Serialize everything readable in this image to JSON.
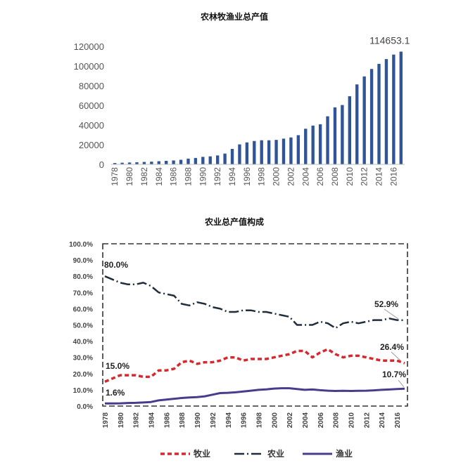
{
  "chart_data": [
    {
      "type": "bar",
      "title": "农林牧渔业总产值",
      "color": "#2f5597",
      "ylim": [
        0,
        120000
      ],
      "yticks": [
        0,
        20000,
        40000,
        60000,
        80000,
        100000,
        120000
      ],
      "xtick_labels": [
        "1978",
        "1980",
        "1982",
        "1984",
        "1986",
        "1988",
        "1990",
        "1992",
        "1994",
        "1996",
        "1998",
        "2000",
        "2002",
        "2004",
        "2006",
        "2008",
        "2010",
        "2012",
        "2014",
        "2016"
      ],
      "x": [
        1978,
        1979,
        1980,
        1981,
        1982,
        1983,
        1984,
        1985,
        1986,
        1987,
        1988,
        1989,
        1990,
        1991,
        1992,
        1993,
        1994,
        1995,
        1996,
        1997,
        1998,
        1999,
        2000,
        2001,
        2002,
        2003,
        2004,
        2005,
        2006,
        2007,
        2008,
        2009,
        2010,
        2011,
        2012,
        2013,
        2014,
        2015,
        2016,
        2017
      ],
      "values": [
        1397,
        1698,
        1923,
        2181,
        2483,
        2750,
        3214,
        3619,
        4013,
        4676,
        5865,
        6535,
        7662,
        8157,
        9085,
        10996,
        15750,
        20341,
        22354,
        23788,
        24542,
        24519,
        24916,
        26180,
        27391,
        29692,
        36239,
        39451,
        40811,
        48893,
        58002,
        60361,
        69320,
        81304,
        89453,
        96995,
        102226,
        107056,
        111640,
        114653.1
      ],
      "annotation": "114653.1",
      "grid": false
    },
    {
      "type": "line",
      "title": "农业总产值构成",
      "ylim": [
        0,
        100
      ],
      "yticks": [
        "0.0%",
        "10.0%",
        "20.0%",
        "30.0%",
        "40.0%",
        "50.0%",
        "60.0%",
        "70.0%",
        "80.0%",
        "90.0%",
        "100.0%"
      ],
      "xtick_labels": [
        "1978",
        "1980",
        "1982",
        "1984",
        "1986",
        "1988",
        "1990",
        "1992",
        "1994",
        "1996",
        "1998",
        "2000",
        "2002",
        "2004",
        "2006",
        "2008",
        "2010",
        "2012",
        "2014",
        "2016"
      ],
      "x": [
        1978,
        1979,
        1980,
        1981,
        1982,
        1983,
        1984,
        1985,
        1986,
        1987,
        1988,
        1989,
        1990,
        1991,
        1992,
        1993,
        1994,
        1995,
        1996,
        1997,
        1998,
        1999,
        2000,
        2001,
        2002,
        2003,
        2004,
        2005,
        2006,
        2007,
        2008,
        2009,
        2010,
        2011,
        2012,
        2013,
        2014,
        2015,
        2016,
        2017
      ],
      "legend_position": "bottom",
      "grid": false,
      "series": [
        {
          "name": "牧业",
          "color": "#d9272e",
          "dash": "6,4",
          "width": 3.5,
          "values": [
            15.0,
            17,
            19,
            19,
            19,
            18,
            18,
            22,
            22,
            23,
            27,
            28,
            26,
            27,
            27,
            28,
            30,
            30,
            28,
            29,
            29,
            29,
            30,
            31,
            32,
            34,
            34,
            30,
            33,
            35,
            32,
            30,
            31,
            31,
            30,
            29,
            28,
            28,
            28,
            26.4
          ]
        },
        {
          "name": "农业",
          "color": "#1f2d3d",
          "dash": "14,4,2,4",
          "width": 2.5,
          "values": [
            80.0,
            78,
            76,
            75,
            75,
            76,
            74,
            70,
            69,
            68,
            63,
            62,
            64,
            63,
            61,
            60,
            58,
            58,
            59,
            59,
            58,
            58,
            57,
            56,
            55,
            50,
            50,
            50,
            52,
            51,
            48,
            51,
            52,
            51,
            52,
            53,
            53,
            54,
            53,
            52.9
          ]
        },
        {
          "name": "渔业",
          "color": "#4b3b8c",
          "dash": "",
          "width": 3,
          "values": [
            1.6,
            1.6,
            1.7,
            1.9,
            2.0,
            2.2,
            2.5,
            3.5,
            4.0,
            4.5,
            5.0,
            5.3,
            5.5,
            6.0,
            7.0,
            8.0,
            8.2,
            8.5,
            9.0,
            9.5,
            10.0,
            10.3,
            10.8,
            11.0,
            11.0,
            10.5,
            10.0,
            10.2,
            9.8,
            9.5,
            9.3,
            9.4,
            9.3,
            9.4,
            9.5,
            9.7,
            10.0,
            10.2,
            10.5,
            10.7
          ]
        }
      ],
      "annotations": {
        "agri_start": "80.0%",
        "agri_end": "52.9%",
        "husb_start": "15.0%",
        "husb_end": "26.4%",
        "fish_start": "1.6%",
        "fish_end": "10.7%"
      }
    }
  ]
}
